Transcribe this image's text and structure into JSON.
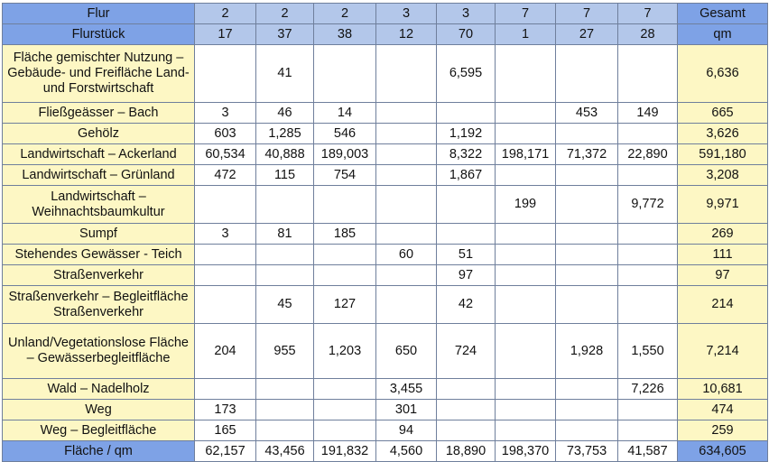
{
  "table": {
    "header1": {
      "label": "Flur",
      "values": [
        "2",
        "2",
        "2",
        "3",
        "3",
        "7",
        "7",
        "7"
      ],
      "total": "Gesamt"
    },
    "header2": {
      "label": "Flurstück",
      "values": [
        "17",
        "37",
        "38",
        "12",
        "70",
        "1",
        "27",
        "28"
      ],
      "total": "qm"
    },
    "rows": [
      {
        "label": "Fläche gemischter Nutzung – Gebäude- und Freifläche Land- und Forstwirtschaft",
        "values": [
          "",
          "41",
          "",
          "",
          "6,595",
          "",
          "",
          ""
        ],
        "total": "6,636"
      },
      {
        "label": "Fließgeässer – Bach",
        "values": [
          "3",
          "46",
          "14",
          "",
          "",
          "",
          "453",
          "149"
        ],
        "total": "665"
      },
      {
        "label": "Gehölz",
        "values": [
          "603",
          "1,285",
          "546",
          "",
          "1,192",
          "",
          "",
          ""
        ],
        "total": "3,626"
      },
      {
        "label": "Landwirtschaft – Ackerland",
        "values": [
          "60,534",
          "40,888",
          "189,003",
          "",
          "8,322",
          "198,171",
          "71,372",
          "22,890"
        ],
        "total": "591,180"
      },
      {
        "label": "Landwirtschaft – Grünland",
        "values": [
          "472",
          "115",
          "754",
          "",
          "1,867",
          "",
          "",
          ""
        ],
        "total": "3,208"
      },
      {
        "label": "Landwirtschaft – Weihnachtsbaumkultur",
        "values": [
          "",
          "",
          "",
          "",
          "",
          "199",
          "",
          "9,772"
        ],
        "total": "9,971"
      },
      {
        "label": "Sumpf",
        "values": [
          "3",
          "81",
          "185",
          "",
          "",
          "",
          "",
          ""
        ],
        "total": "269"
      },
      {
        "label": "Stehendes Gewässer - Teich",
        "values": [
          "",
          "",
          "",
          "60",
          "51",
          "",
          "",
          ""
        ],
        "total": "111"
      },
      {
        "label": "Straßenverkehr",
        "values": [
          "",
          "",
          "",
          "",
          "97",
          "",
          "",
          ""
        ],
        "total": "97"
      },
      {
        "label": "Straßenverkehr – Begleitfläche Straßenverkehr",
        "values": [
          "",
          "45",
          "127",
          "",
          "42",
          "",
          "",
          ""
        ],
        "total": "214"
      },
      {
        "label": "Unland/Vegetationslose Fläche – Gewässerbegleitfläche",
        "values": [
          "204",
          "955",
          "1,203",
          "650",
          "724",
          "",
          "1,928",
          "1,550"
        ],
        "total": "7,214"
      },
      {
        "label": "Wald – Nadelholz",
        "values": [
          "",
          "",
          "",
          "3,455",
          "",
          "",
          "",
          "7,226"
        ],
        "total": "10,681"
      },
      {
        "label": "Weg",
        "values": [
          "173",
          "",
          "",
          "301",
          "",
          "",
          "",
          ""
        ],
        "total": "474"
      },
      {
        "label": "Weg – Begleitfläche",
        "values": [
          "165",
          "",
          "",
          "94",
          "",
          "",
          "",
          ""
        ],
        "total": "259"
      }
    ],
    "footer": {
      "label": "Fläche / qm",
      "values": [
        "62,157",
        "43,456",
        "191,832",
        "4,560",
        "18,890",
        "198,370",
        "73,753",
        "41,587"
      ],
      "total": "634,605"
    }
  },
  "colors": {
    "header_label_blue": "#7ea2e6",
    "header_cell_blue": "#b3c7ea",
    "label_yellow": "#fdf7c4",
    "border": "#6f7f9c"
  }
}
